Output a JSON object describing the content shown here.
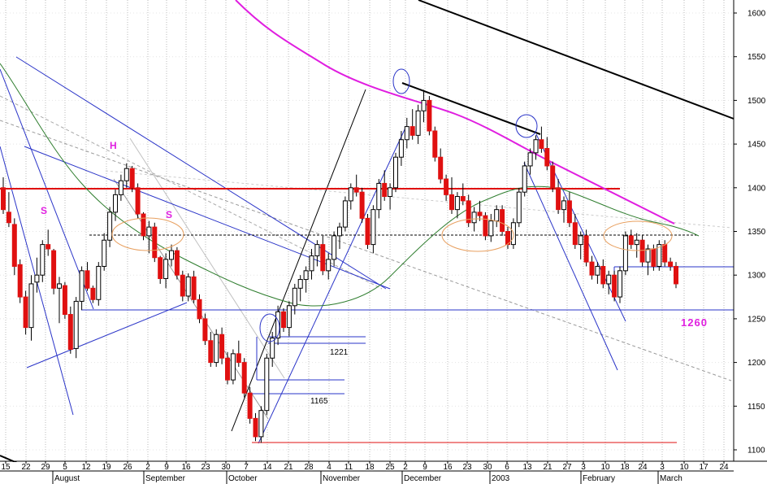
{
  "chart_data": {
    "type": "candlestick",
    "y_axis": {
      "ticks": [
        1100,
        1150,
        1200,
        1250,
        1300,
        1350,
        1400,
        1450,
        1500,
        1550,
        1600
      ],
      "range": [
        1090,
        1610
      ],
      "position": "right"
    },
    "x_axis": {
      "day_labels": [
        "15",
        "22",
        "29",
        "5",
        "12",
        "19",
        "26",
        "2",
        "9",
        "16",
        "23",
        "30",
        "7",
        "14",
        "21",
        "28",
        "4",
        "11",
        "18",
        "25",
        "2",
        "9",
        "16",
        "23",
        "30",
        "6",
        "13",
        "21",
        "27",
        "3",
        "10",
        "18",
        "24",
        "3",
        "10",
        "17",
        "24"
      ],
      "month_labels": [
        "August",
        "September",
        "October",
        "November",
        "December",
        "2003",
        "February",
        "March"
      ]
    },
    "ohlc": [
      [
        1400,
        1412,
        1370,
        1375
      ],
      [
        1372,
        1395,
        1355,
        1360
      ],
      [
        1358,
        1365,
        1300,
        1310
      ],
      [
        1312,
        1318,
        1268,
        1275
      ],
      [
        1275,
        1282,
        1232,
        1240
      ],
      [
        1240,
        1300,
        1225,
        1290
      ],
      [
        1292,
        1320,
        1280,
        1300
      ],
      [
        1300,
        1340,
        1292,
        1335
      ],
      [
        1335,
        1352,
        1322,
        1330
      ],
      [
        1328,
        1330,
        1278,
        1285
      ],
      [
        1285,
        1298,
        1245,
        1290
      ],
      [
        1288,
        1292,
        1250,
        1255
      ],
      [
        1255,
        1264,
        1210,
        1215
      ],
      [
        1216,
        1275,
        1205,
        1270
      ],
      [
        1270,
        1310,
        1260,
        1305
      ],
      [
        1305,
        1315,
        1282,
        1285
      ],
      [
        1285,
        1288,
        1268,
        1272
      ],
      [
        1272,
        1315,
        1265,
        1310
      ],
      [
        1310,
        1348,
        1305,
        1340
      ],
      [
        1340,
        1378,
        1332,
        1372
      ],
      [
        1372,
        1398,
        1362,
        1392
      ],
      [
        1392,
        1415,
        1385,
        1408
      ],
      [
        1408,
        1428,
        1400,
        1422
      ],
      [
        1422,
        1425,
        1395,
        1400
      ],
      [
        1400,
        1405,
        1365,
        1370
      ],
      [
        1370,
        1372,
        1340,
        1345
      ],
      [
        1345,
        1362,
        1325,
        1355
      ],
      [
        1355,
        1360,
        1315,
        1320
      ],
      [
        1320,
        1322,
        1290,
        1296
      ],
      [
        1296,
        1325,
        1285,
        1318
      ],
      [
        1318,
        1335,
        1310,
        1328
      ],
      [
        1328,
        1332,
        1295,
        1300
      ],
      [
        1300,
        1305,
        1270,
        1276
      ],
      [
        1276,
        1302,
        1270,
        1298
      ],
      [
        1298,
        1305,
        1268,
        1272
      ],
      [
        1272,
        1278,
        1245,
        1250
      ],
      [
        1250,
        1256,
        1220,
        1225
      ],
      [
        1225,
        1235,
        1195,
        1200
      ],
      [
        1200,
        1238,
        1195,
        1232
      ],
      [
        1232,
        1240,
        1198,
        1205
      ],
      [
        1205,
        1212,
        1175,
        1180
      ],
      [
        1180,
        1215,
        1175,
        1210
      ],
      [
        1210,
        1225,
        1195,
        1200
      ],
      [
        1200,
        1205,
        1160,
        1165
      ],
      [
        1165,
        1172,
        1130,
        1136
      ],
      [
        1136,
        1142,
        1110,
        1115
      ],
      [
        1115,
        1150,
        1108,
        1145
      ],
      [
        1145,
        1210,
        1140,
        1205
      ],
      [
        1205,
        1235,
        1195,
        1228
      ],
      [
        1228,
        1265,
        1220,
        1258
      ],
      [
        1258,
        1262,
        1235,
        1240
      ],
      [
        1240,
        1270,
        1230,
        1265
      ],
      [
        1265,
        1290,
        1255,
        1285
      ],
      [
        1285,
        1300,
        1270,
        1295
      ],
      [
        1295,
        1310,
        1280,
        1305
      ],
      [
        1305,
        1330,
        1295,
        1322
      ],
      [
        1322,
        1340,
        1310,
        1335
      ],
      [
        1335,
        1345,
        1300,
        1305
      ],
      [
        1305,
        1325,
        1295,
        1318
      ],
      [
        1318,
        1350,
        1310,
        1345
      ],
      [
        1345,
        1360,
        1330,
        1355
      ],
      [
        1355,
        1390,
        1350,
        1385
      ],
      [
        1385,
        1405,
        1375,
        1400
      ],
      [
        1400,
        1415,
        1390,
        1395
      ],
      [
        1395,
        1400,
        1360,
        1365
      ],
      [
        1365,
        1370,
        1330,
        1335
      ],
      [
        1335,
        1380,
        1325,
        1375
      ],
      [
        1375,
        1410,
        1365,
        1405
      ],
      [
        1405,
        1420,
        1385,
        1390
      ],
      [
        1390,
        1405,
        1375,
        1400
      ],
      [
        1400,
        1440,
        1395,
        1435
      ],
      [
        1435,
        1465,
        1425,
        1455
      ],
      [
        1455,
        1480,
        1445,
        1470
      ],
      [
        1470,
        1490,
        1455,
        1460
      ],
      [
        1460,
        1495,
        1450,
        1488
      ],
      [
        1488,
        1512,
        1475,
        1500
      ],
      [
        1500,
        1505,
        1460,
        1465
      ],
      [
        1465,
        1470,
        1430,
        1435
      ],
      [
        1435,
        1445,
        1405,
        1410
      ],
      [
        1410,
        1415,
        1385,
        1392
      ],
      [
        1392,
        1412,
        1370,
        1375
      ],
      [
        1375,
        1395,
        1365,
        1390
      ],
      [
        1390,
        1405,
        1380,
        1385
      ],
      [
        1385,
        1392,
        1355,
        1360
      ],
      [
        1360,
        1378,
        1350,
        1372
      ],
      [
        1372,
        1385,
        1362,
        1368
      ],
      [
        1368,
        1372,
        1340,
        1345
      ],
      [
        1345,
        1370,
        1338,
        1362
      ],
      [
        1362,
        1380,
        1355,
        1375
      ],
      [
        1375,
        1380,
        1345,
        1350
      ],
      [
        1350,
        1355,
        1330,
        1335
      ],
      [
        1335,
        1365,
        1330,
        1360
      ],
      [
        1360,
        1400,
        1355,
        1395
      ],
      [
        1395,
        1430,
        1390,
        1425
      ],
      [
        1425,
        1445,
        1415,
        1440
      ],
      [
        1440,
        1460,
        1432,
        1455
      ],
      [
        1455,
        1470,
        1440,
        1445
      ],
      [
        1445,
        1458,
        1420,
        1425
      ],
      [
        1425,
        1430,
        1395,
        1400
      ],
      [
        1400,
        1410,
        1370,
        1375
      ],
      [
        1375,
        1390,
        1360,
        1385
      ],
      [
        1385,
        1395,
        1355,
        1360
      ],
      [
        1360,
        1370,
        1330,
        1335
      ],
      [
        1335,
        1350,
        1318,
        1345
      ],
      [
        1345,
        1352,
        1310,
        1315
      ],
      [
        1315,
        1322,
        1295,
        1300
      ],
      [
        1300,
        1315,
        1290,
        1310
      ],
      [
        1310,
        1318,
        1285,
        1290
      ],
      [
        1290,
        1305,
        1278,
        1300
      ],
      [
        1300,
        1305,
        1270,
        1275
      ],
      [
        1275,
        1310,
        1268,
        1305
      ],
      [
        1305,
        1350,
        1300,
        1345
      ],
      [
        1345,
        1352,
        1330,
        1335
      ],
      [
        1335,
        1348,
        1320,
        1340
      ],
      [
        1340,
        1346,
        1310,
        1315
      ],
      [
        1315,
        1335,
        1300,
        1330
      ],
      [
        1330,
        1335,
        1305,
        1310
      ],
      [
        1310,
        1340,
        1305,
        1335
      ],
      [
        1335,
        1340,
        1310,
        1315
      ],
      [
        1315,
        1320,
        1305,
        1310
      ],
      [
        1310,
        1315,
        1285,
        1290
      ]
    ],
    "annotations": {
      "head_shoulders_labels": [
        "S",
        "H",
        "S"
      ],
      "levels": [
        "1221",
        "1165"
      ],
      "support_label": "1260"
    },
    "legend": "none",
    "grid": "vertical dotted"
  }
}
